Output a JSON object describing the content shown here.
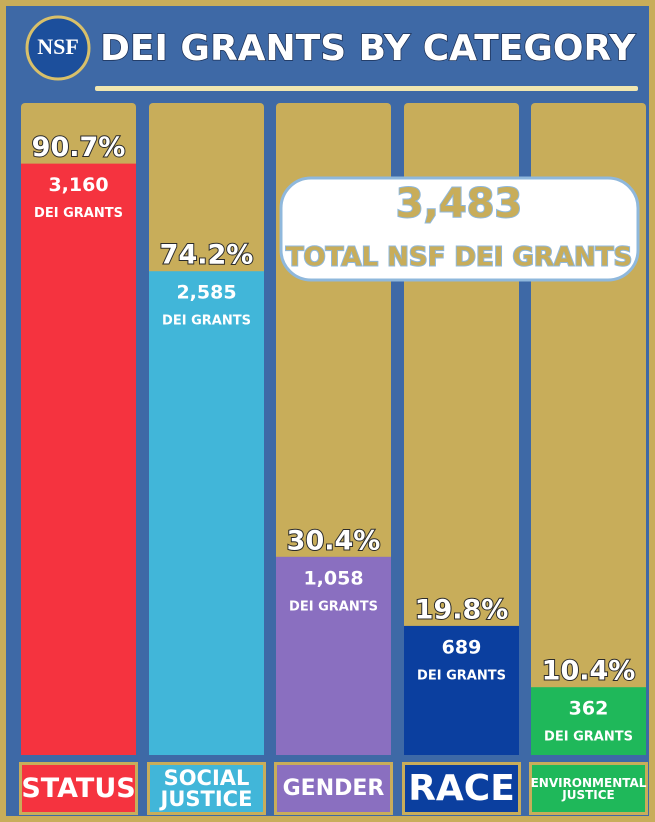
{
  "chart_data": {
    "type": "bar",
    "title": "DEI GRANTS BY CATEGORY",
    "logo_text": "NSF",
    "categories": [
      "STATUS",
      "SOCIAL JUSTICE",
      "GENDER",
      "RACE",
      "ENVIRONMENTAL JUSTICE"
    ],
    "values": [
      90.7,
      74.2,
      30.4,
      19.8,
      10.4
    ],
    "value_labels": [
      "90.7%",
      "74.2%",
      "30.4%",
      "19.8%",
      "10.4%"
    ],
    "counts": [
      3160,
      2585,
      1058,
      689,
      362
    ],
    "count_labels": [
      "3,160",
      "2,585",
      "1,058",
      "689",
      "362"
    ],
    "count_unit": "DEI GRANTS",
    "colors": [
      "#f5333f",
      "#41b6d9",
      "#8a6fc0",
      "#0b3f9f",
      "#1fb85a"
    ],
    "ylim": [
      0,
      100
    ],
    "total": 3483,
    "total_label": "3,483",
    "total_text": "TOTAL NSF DEI GRANTS"
  }
}
